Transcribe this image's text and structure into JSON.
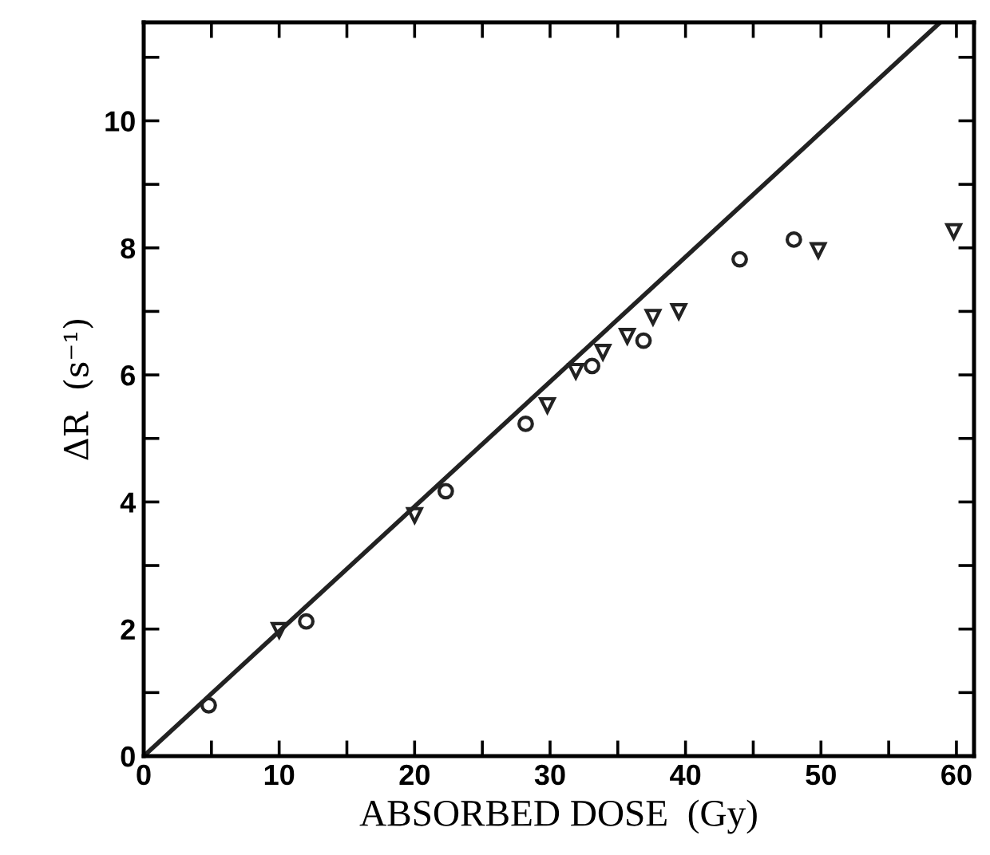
{
  "chart_data": {
    "type": "scatter",
    "xlabel": "ABSORBED DOSE  (Gy)",
    "ylabel": "ΔR  (s⁻¹)",
    "xlim": [
      0,
      61.3
    ],
    "ylim": [
      0,
      11.55
    ],
    "xticks": [
      0,
      {
        "value": 5,
        "label": null
      },
      10,
      {
        "value": 15,
        "label": null
      },
      20,
      {
        "value": 25,
        "label": null
      },
      30,
      {
        "value": 35,
        "label": null
      },
      40,
      {
        "value": 45,
        "label": null
      },
      50,
      {
        "value": 55,
        "label": null
      },
      60
    ],
    "yticks": [
      0,
      {
        "value": 1,
        "label": null
      },
      2,
      {
        "value": 3,
        "label": null
      },
      4,
      {
        "value": 5,
        "label": null
      },
      6,
      {
        "value": 7,
        "label": null
      },
      8,
      {
        "value": 9,
        "label": null
      },
      10,
      {
        "value": 11,
        "label": null
      }
    ],
    "grid": false,
    "legend": false,
    "series": [
      {
        "marker": "circle",
        "color": "#222222",
        "x": [
          4.8,
          12.0,
          22.3,
          28.2,
          33.1,
          36.9,
          44.0,
          48.0
        ],
        "values": [
          0.8,
          2.12,
          4.17,
          5.23,
          6.14,
          6.54,
          7.82,
          8.13
        ]
      },
      {
        "marker": "triangle",
        "color": "#222222",
        "x": [
          10.0,
          20.0,
          29.8,
          31.9,
          33.9,
          35.7,
          37.6,
          39.5,
          49.8,
          59.8
        ],
        "values": [
          1.98,
          3.79,
          5.52,
          6.06,
          6.36,
          6.61,
          6.91,
          7.0,
          7.96,
          8.26
        ]
      },
      {
        "type": "line",
        "marker": "none",
        "line_style": "solid",
        "color": "#222222",
        "x": [
          0,
          58.8
        ],
        "values": [
          0,
          11.55
        ]
      }
    ]
  }
}
